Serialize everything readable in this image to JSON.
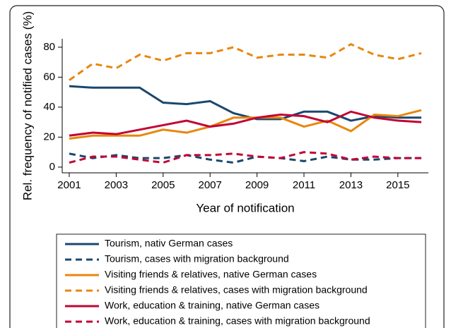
{
  "chart_data": {
    "type": "line",
    "x_label": "Year of notification",
    "y_label": "Rel. frequency of notified cases (%)",
    "x": [
      2001,
      2002,
      2003,
      2004,
      2005,
      2006,
      2007,
      2008,
      2009,
      2010,
      2011,
      2012,
      2013,
      2014,
      2015,
      2016
    ],
    "xlim": [
      2000.7,
      2016.3
    ],
    "xticks": [
      2001,
      2003,
      2005,
      2007,
      2009,
      2011,
      2013,
      2015
    ],
    "ylim": [
      -3.8,
      85.6
    ],
    "yticks": [
      0,
      20,
      40,
      60,
      80
    ],
    "grid": false,
    "series": [
      {
        "name": "Tourism, nativ German cases",
        "color": "#1a476f",
        "dashed": false,
        "values": [
          54,
          53,
          53,
          53,
          43,
          42,
          44,
          36,
          32,
          32,
          37,
          37,
          31,
          34,
          33,
          33
        ]
      },
      {
        "name": "Tourism, cases with migration background",
        "color": "#1a476f",
        "dashed": true,
        "values": [
          9,
          6,
          8,
          6,
          6,
          8,
          5,
          3,
          7,
          6,
          4,
          7,
          5,
          5,
          6,
          6
        ]
      },
      {
        "name": "Visiting friends & relatives, native German cases",
        "color": "#e8870d",
        "dashed": false,
        "values": [
          19,
          21,
          21,
          21,
          25,
          23,
          27,
          33,
          33,
          33,
          27,
          31,
          24,
          35,
          34,
          38
        ]
      },
      {
        "name": "Visiting friends & relatives, cases with migration background",
        "color": "#e8870d",
        "dashed": true,
        "values": [
          58,
          69,
          66,
          75,
          71,
          76,
          76,
          80,
          73,
          75,
          75,
          73,
          82,
          75,
          72,
          76
        ]
      },
      {
        "name": "Work, education & training, native German cases",
        "color": "#c10534",
        "dashed": false,
        "values": [
          21,
          23,
          22,
          25,
          28,
          31,
          27,
          29,
          33,
          35,
          34,
          30,
          37,
          33,
          31,
          30
        ]
      },
      {
        "name": "Work, education & training, cases with migration background",
        "color": "#c10534",
        "dashed": true,
        "values": [
          3,
          7,
          7,
          5,
          3,
          8,
          8,
          9,
          7,
          6,
          10,
          9,
          5,
          7,
          6,
          6
        ]
      }
    ]
  }
}
